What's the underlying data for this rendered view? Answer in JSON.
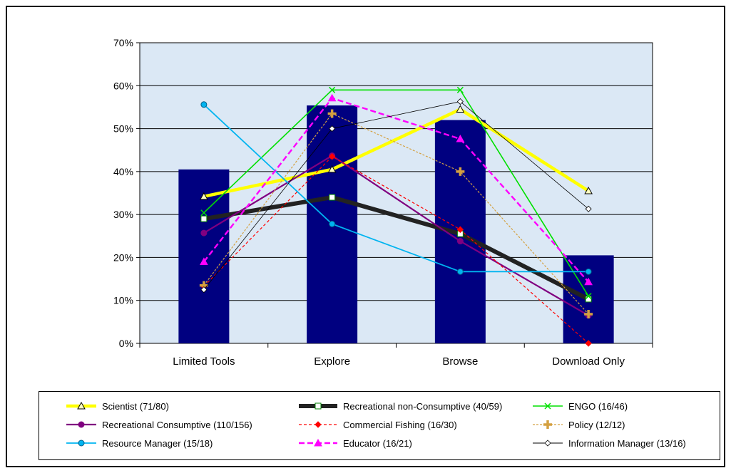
{
  "chart_data": {
    "type": "bar+line",
    "categories": [
      "Limited Tools",
      "Explore",
      "Browse",
      "Download Only"
    ],
    "ylim": [
      0,
      70
    ],
    "y_ticks": [
      "0%",
      "10%",
      "20%",
      "30%",
      "40%",
      "50%",
      "60%",
      "70%"
    ],
    "grid": true,
    "plot_background": "#dbe8f5",
    "bars": {
      "color": "#000080",
      "values": [
        40.5,
        55.4,
        52.0,
        20.5
      ]
    },
    "legend_position": "bottom",
    "series": [
      {
        "name": "Scientist (71/80)",
        "color": "#ffff00",
        "width": 4.5,
        "dash": "",
        "marker": "triangle",
        "values": [
          34.2,
          40.5,
          54.5,
          35.5
        ]
      },
      {
        "name": "Recreational non-Consumptive (40/59)",
        "color": "#222222",
        "width": 6,
        "dash": "",
        "marker": "square",
        "values": [
          29.0,
          34.0,
          25.5,
          10.3
        ]
      },
      {
        "name": "ENGO (16/46)",
        "color": "#00e000",
        "width": 1.6,
        "dash": "",
        "marker": "x",
        "values": [
          30.4,
          59.0,
          59.0,
          11.0
        ]
      },
      {
        "name": "Recreational Consumptive (110/156)",
        "color": "#800080",
        "width": 2.2,
        "dash": "",
        "marker": "circle",
        "values": [
          25.7,
          43.7,
          23.8,
          6.5
        ]
      },
      {
        "name": "Commercial Fishing (16/30)",
        "color": "#ff0000",
        "width": 1.2,
        "dash": "4,3",
        "marker": "diamond",
        "values": [
          13.3,
          43.5,
          26.5,
          0.0
        ]
      },
      {
        "name": "Policy (12/12)",
        "color": "#d4a040",
        "width": 1.2,
        "dash": "3,2",
        "marker": "plus",
        "values": [
          13.5,
          53.5,
          40.0,
          6.8
        ]
      },
      {
        "name": "Resource Manager (15/18)",
        "color": "#00b4f0",
        "width": 1.8,
        "dash": "",
        "marker": "circle",
        "values": [
          55.6,
          27.8,
          16.7,
          16.7
        ]
      },
      {
        "name": "Educator (16/21)",
        "color": "#ff00ff",
        "width": 2.4,
        "dash": "8,4",
        "marker": "triangle",
        "values": [
          19.0,
          57.1,
          47.6,
          14.3
        ]
      },
      {
        "name": "Information Manager (13/16)",
        "color": "#000000",
        "width": 0.8,
        "dash": "",
        "marker": "diamond-open",
        "values": [
          12.5,
          50.0,
          56.3,
          31.3
        ]
      }
    ]
  }
}
